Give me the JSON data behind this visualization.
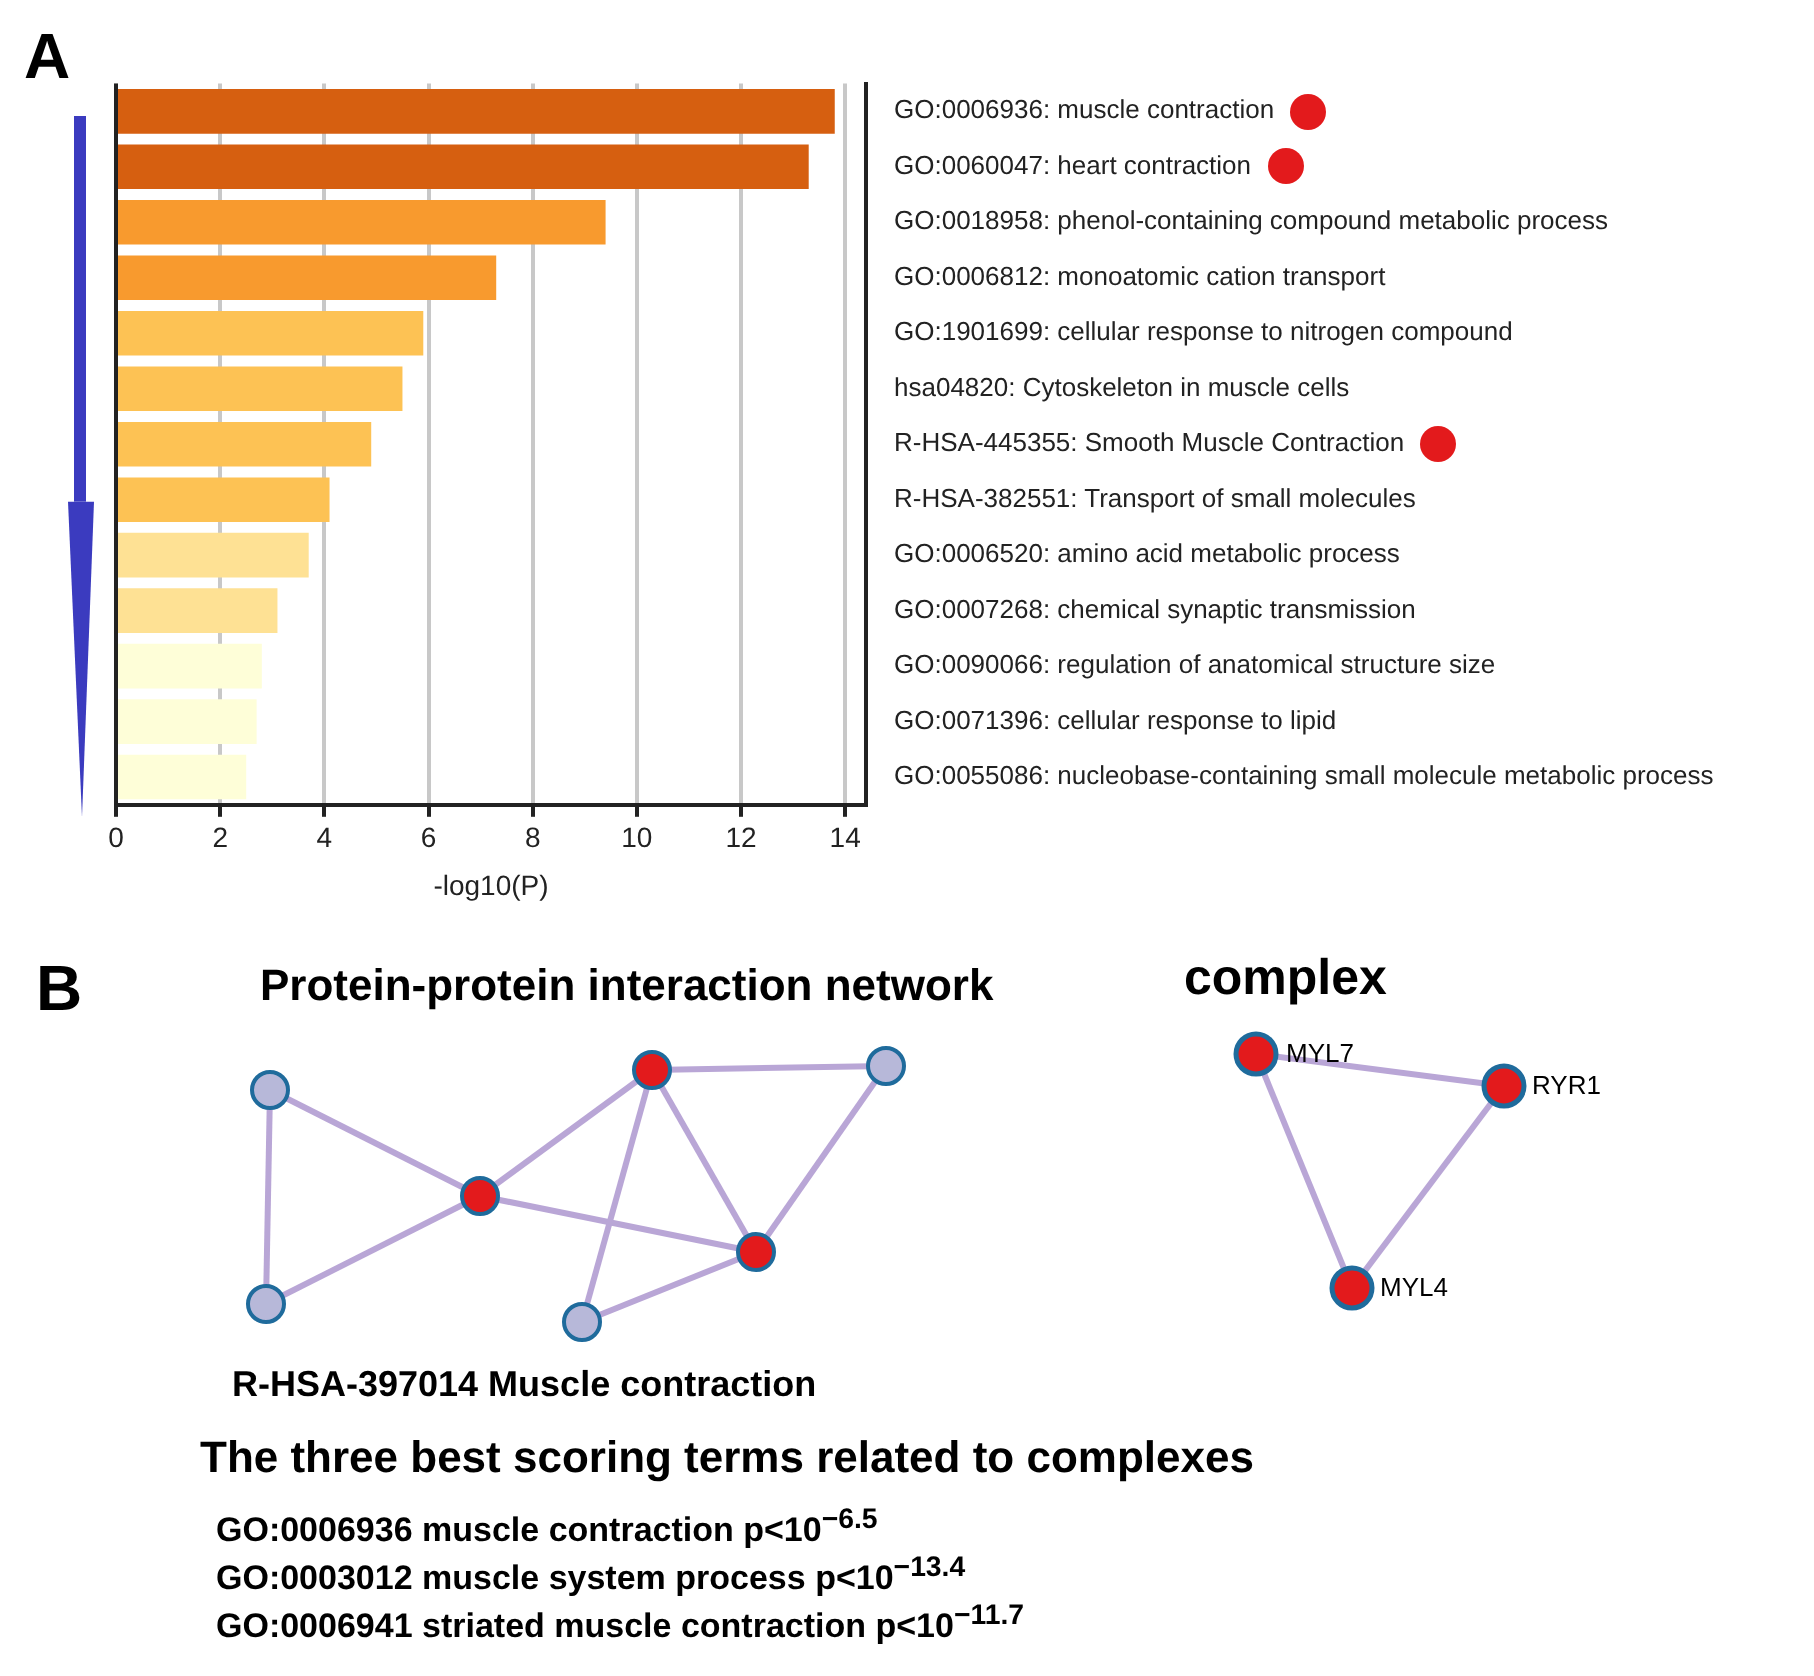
{
  "chart_data": [
    {
      "type": "bar",
      "orientation": "horizontal",
      "xlabel": "-log10(P)",
      "annotations": [
        "A"
      ],
      "categories": [
        "GO:0006936: muscle contraction",
        "GO:0060047: heart contraction",
        "GO:0018958: phenol-containing compound metabolic process",
        "GO:0006812: monoatomic cation transport",
        "GO:1901699: cellular response to nitrogen compound",
        "hsa04820: Cytoskeleton in muscle cells",
        "R-HSA-445355: Smooth Muscle Contraction",
        "R-HSA-382551: Transport of small molecules",
        "GO:0006520: amino acid metabolic process",
        "GO:0007268: chemical synaptic transmission",
        "GO:0090066: regulation of anatomical structure size",
        "GO:0071396: cellular response to lipid",
        "GO:0055086: nucleobase-containing small molecule metabolic process"
      ],
      "values": [
        13.8,
        13.3,
        9.4,
        7.3,
        5.9,
        5.5,
        4.9,
        4.1,
        3.7,
        3.1,
        2.8,
        2.7,
        2.5
      ],
      "colors": [
        "#d65f10",
        "#d65f10",
        "#f89a2e",
        "#f89a2e",
        "#fdc254",
        "#fdc254",
        "#fdc254",
        "#fdc254",
        "#fee194",
        "#fee194",
        "#fefed8",
        "#fefed8",
        "#fefed8"
      ],
      "xlim": [
        0,
        14.4
      ],
      "xticks": [
        0,
        2,
        4,
        6,
        8,
        10,
        12,
        14
      ],
      "grid": "x"
    },
    {
      "type": "other",
      "title": "Protein-protein interaction network",
      "subtitle": "complex",
      "annotations": [
        "B",
        "MYL7",
        "RYR1",
        "MYL4",
        "R-HSA-397014  Muscle contraction",
        "The three best scoring terms related to complexes",
        "GO:0006936   muscle contraction p<10$^{−6.5}$",
        "GO:0003012   muscle system process  p<10$^{−13.4}$",
        "GO:0006941   striated muscle contraction  p<10$^{−11.7}$"
      ]
    }
  ]
}
